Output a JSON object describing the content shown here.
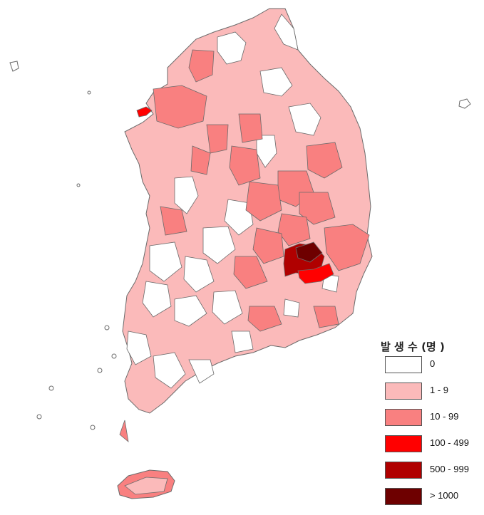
{
  "legend": {
    "title": "발 생 수 (명 )",
    "items": [
      {
        "label": "0",
        "color": "#ffffff"
      },
      {
        "label": "1 - 9",
        "color": "#fbbaba"
      },
      {
        "label": "10 - 99",
        "color": "#f98080"
      },
      {
        "label": "100 - 499",
        "color": "#ff0000"
      },
      {
        "label": "500 - 999",
        "color": "#b00000"
      },
      {
        "label": "> 1000",
        "color": "#6e0000"
      }
    ]
  },
  "colors": {
    "boundary": "#6b6b6b",
    "background": "#ffffff"
  }
}
